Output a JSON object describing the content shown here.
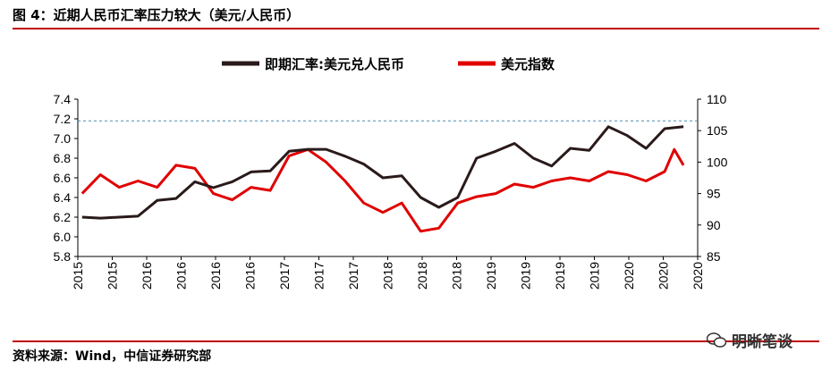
{
  "header": {
    "title": "图 4：近期人民币汇率压力较大（美元/人民币）"
  },
  "footer": {
    "source": "资料来源：Wind，中信证券研究部"
  },
  "watermark": {
    "text": "明晰笔谈",
    "icon": "wechat-icon"
  },
  "colors": {
    "usdcny": "#2a1a1a",
    "dxy": "#e00000",
    "ref_line": "#4a8ab5",
    "rule": "#c00000"
  },
  "chart_data": {
    "type": "line",
    "title": "",
    "grid": false,
    "legend_position": "top",
    "reference_line": {
      "axis": "left",
      "value": 7.18,
      "style": "dashed"
    },
    "x_tick_labels": [
      "2015",
      "2015",
      "2016",
      "2016",
      "2016",
      "2016",
      "2017",
      "2017",
      "2017",
      "2018",
      "2018",
      "2018",
      "2019",
      "2019",
      "2019",
      "2019",
      "2020",
      "2020",
      "2020"
    ],
    "y_left": {
      "range": [
        5.8,
        7.4
      ],
      "ticks": [
        "5.8",
        "6.0",
        "6.2",
        "6.4",
        "6.6",
        "6.8",
        "7.0",
        "7.2",
        "7.4"
      ]
    },
    "y_right": {
      "range": [
        85,
        110
      ],
      "ticks": [
        "85",
        "90",
        "95",
        "100",
        "105",
        "110"
      ]
    },
    "series": [
      {
        "name": "即期汇率:美元兑人民币",
        "axis": "left",
        "color": "#2a1a1a",
        "points": [
          [
            "2015-01",
            6.2
          ],
          [
            "2015-03",
            6.19
          ],
          [
            "2015-05",
            6.2
          ],
          [
            "2015-07",
            6.21
          ],
          [
            "2015-09",
            6.37
          ],
          [
            "2015-11",
            6.39
          ],
          [
            "2016-01",
            6.56
          ],
          [
            "2016-03",
            6.5
          ],
          [
            "2016-05",
            6.56
          ],
          [
            "2016-07",
            6.66
          ],
          [
            "2016-09",
            6.67
          ],
          [
            "2016-11",
            6.87
          ],
          [
            "2017-01",
            6.89
          ],
          [
            "2017-03",
            6.89
          ],
          [
            "2017-05",
            6.82
          ],
          [
            "2017-07",
            6.74
          ],
          [
            "2017-09",
            6.6
          ],
          [
            "2017-11",
            6.62
          ],
          [
            "2018-01",
            6.4
          ],
          [
            "2018-03",
            6.3
          ],
          [
            "2018-05",
            6.4
          ],
          [
            "2018-07",
            6.8
          ],
          [
            "2018-09",
            6.87
          ],
          [
            "2018-11",
            6.95
          ],
          [
            "2019-01",
            6.8
          ],
          [
            "2019-03",
            6.72
          ],
          [
            "2019-05",
            6.9
          ],
          [
            "2019-07",
            6.88
          ],
          [
            "2019-09",
            7.12
          ],
          [
            "2019-11",
            7.03
          ],
          [
            "2020-01",
            6.9
          ],
          [
            "2020-03",
            7.1
          ],
          [
            "2020-05",
            7.12
          ]
        ]
      },
      {
        "name": "美元指数",
        "axis": "right",
        "color": "#e00000",
        "points": [
          [
            "2015-01",
            95.0
          ],
          [
            "2015-03",
            98.0
          ],
          [
            "2015-05",
            96.0
          ],
          [
            "2015-07",
            97.0
          ],
          [
            "2015-09",
            96.0
          ],
          [
            "2015-11",
            99.5
          ],
          [
            "2016-01",
            99.0
          ],
          [
            "2016-03",
            95.0
          ],
          [
            "2016-05",
            94.0
          ],
          [
            "2016-07",
            96.0
          ],
          [
            "2016-09",
            95.5
          ],
          [
            "2016-11",
            101.0
          ],
          [
            "2017-01",
            102.0
          ],
          [
            "2017-03",
            100.0
          ],
          [
            "2017-05",
            97.0
          ],
          [
            "2017-07",
            93.5
          ],
          [
            "2017-09",
            92.0
          ],
          [
            "2017-11",
            93.5
          ],
          [
            "2018-01",
            89.0
          ],
          [
            "2018-03",
            89.5
          ],
          [
            "2018-05",
            93.5
          ],
          [
            "2018-07",
            94.5
          ],
          [
            "2018-09",
            95.0
          ],
          [
            "2018-11",
            96.5
          ],
          [
            "2019-01",
            96.0
          ],
          [
            "2019-03",
            97.0
          ],
          [
            "2019-05",
            97.5
          ],
          [
            "2019-07",
            97.0
          ],
          [
            "2019-09",
            98.5
          ],
          [
            "2019-11",
            98.0
          ],
          [
            "2020-01",
            97.0
          ],
          [
            "2020-03",
            98.5
          ],
          [
            "2020-04",
            102.0
          ],
          [
            "2020-05",
            99.5
          ]
        ]
      }
    ]
  }
}
